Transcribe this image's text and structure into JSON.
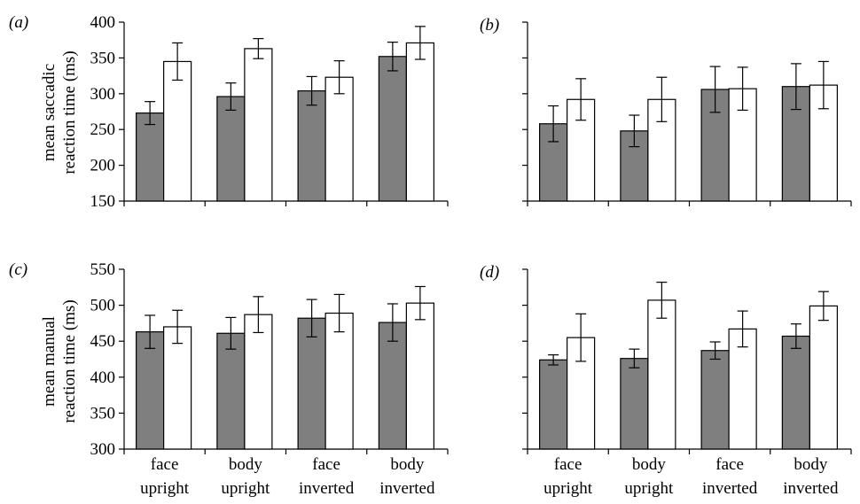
{
  "figure": {
    "panel_labels": [
      "(a)",
      "(b)",
      "(c)",
      "(d)"
    ],
    "ylabel_top": [
      "mean saccadic",
      "reaction time (ms)"
    ],
    "ylabel_bottom": [
      "mean manual",
      "reaction time (ms)"
    ],
    "bar_colors": {
      "filled": "#7f7f7f",
      "open": "#ffffff",
      "outline": "#000000"
    }
  },
  "chart_data": [
    {
      "type": "bar",
      "panel": "(a)",
      "categories": [
        "face upright",
        "body upright",
        "face inverted",
        "body inverted"
      ],
      "series": [
        {
          "values": [
            273,
            296,
            304,
            352
          ],
          "errors": [
            16,
            19,
            20,
            20
          ],
          "color": "#7f7f7f"
        },
        {
          "values": [
            345,
            363,
            323,
            371
          ],
          "errors": [
            26,
            14,
            23,
            23
          ],
          "color": "#ffffff"
        }
      ],
      "ylim": [
        150,
        400
      ],
      "yticks": [
        150,
        200,
        250,
        300,
        350,
        400
      ],
      "ytick_labels_shown": true
    },
    {
      "type": "bar",
      "panel": "(b)",
      "categories": [
        "face upright",
        "body upright",
        "face inverted",
        "body inverted"
      ],
      "series": [
        {
          "values": [
            258,
            248,
            306,
            310
          ],
          "errors": [
            25,
            22,
            32,
            32
          ],
          "color": "#7f7f7f"
        },
        {
          "values": [
            292,
            292,
            307,
            312
          ],
          "errors": [
            29,
            31,
            30,
            33
          ],
          "color": "#ffffff"
        }
      ],
      "ylim": [
        150,
        400
      ],
      "yticks": [
        150,
        200,
        250,
        300,
        350,
        400
      ],
      "ytick_labels_shown": false
    },
    {
      "type": "bar",
      "panel": "(c)",
      "categories": [
        "face upright",
        "body upright",
        "face inverted",
        "body inverted"
      ],
      "series": [
        {
          "values": [
            463,
            461,
            482,
            476
          ],
          "errors": [
            23,
            22,
            26,
            26
          ],
          "color": "#7f7f7f"
        },
        {
          "values": [
            470,
            487,
            489,
            503
          ],
          "errors": [
            23,
            25,
            26,
            23
          ],
          "color": "#ffffff"
        }
      ],
      "ylim": [
        300,
        550
      ],
      "yticks": [
        300,
        350,
        400,
        450,
        500,
        550
      ],
      "ytick_labels_shown": true
    },
    {
      "type": "bar",
      "panel": "(d)",
      "categories": [
        "face upright",
        "body upright",
        "face inverted",
        "body inverted"
      ],
      "series": [
        {
          "values": [
            424,
            426,
            437,
            457
          ],
          "errors": [
            7,
            13,
            12,
            17
          ],
          "color": "#7f7f7f"
        },
        {
          "values": [
            455,
            507,
            467,
            499
          ],
          "errors": [
            33,
            25,
            25,
            20
          ],
          "color": "#ffffff"
        }
      ],
      "ylim": [
        300,
        550
      ],
      "yticks": [
        300,
        350,
        400,
        450,
        500,
        550
      ],
      "ytick_labels_shown": false
    }
  ]
}
